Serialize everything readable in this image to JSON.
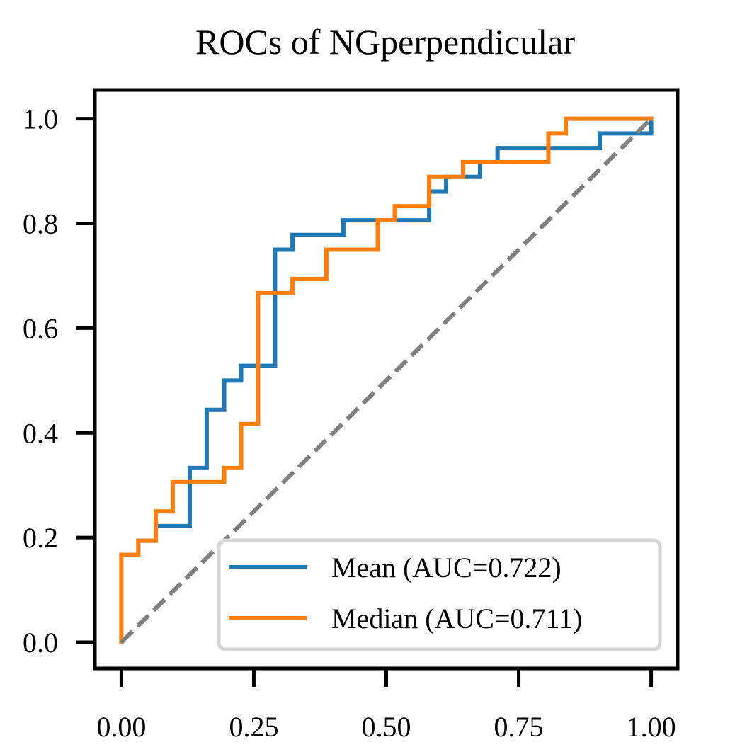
{
  "chart_data": {
    "type": "line",
    "title": "ROCs of NGperpendicular",
    "xlabel": "",
    "ylabel": "",
    "xlim": [
      -0.05,
      1.05
    ],
    "ylim": [
      -0.05,
      1.055
    ],
    "xticks": [
      0.0,
      0.25,
      0.5,
      0.75,
      1.0
    ],
    "xtick_labels": [
      "0.00",
      "0.25",
      "0.50",
      "0.75",
      "1.00"
    ],
    "yticks": [
      0.0,
      0.2,
      0.4,
      0.6,
      0.8,
      1.0
    ],
    "ytick_labels": [
      "0.0",
      "0.2",
      "0.4",
      "0.6",
      "0.8",
      "1.0"
    ],
    "grid": false,
    "legend_position": "lower-right",
    "series": [
      {
        "name": "Mean (AUC=0.722)",
        "color": "#1f77b4",
        "style": "step",
        "x": [
          0.0,
          0.0,
          0.032,
          0.032,
          0.065,
          0.065,
          0.129,
          0.129,
          0.161,
          0.161,
          0.194,
          0.194,
          0.226,
          0.226,
          0.29,
          0.29,
          0.323,
          0.323,
          0.419,
          0.419,
          0.581,
          0.581,
          0.613,
          0.613,
          0.645,
          0.645,
          0.677,
          0.677,
          0.71,
          0.71,
          0.903,
          0.903,
          1.0,
          1.0
        ],
        "y": [
          0.0,
          0.167,
          0.167,
          0.194,
          0.194,
          0.222,
          0.222,
          0.333,
          0.333,
          0.444,
          0.444,
          0.5,
          0.5,
          0.528,
          0.528,
          0.75,
          0.75,
          0.778,
          0.778,
          0.806,
          0.806,
          0.861,
          0.861,
          0.889,
          0.889,
          0.889,
          0.889,
          0.917,
          0.917,
          0.944,
          0.944,
          0.972,
          0.972,
          1.0
        ]
      },
      {
        "name": "Median (AUC=0.711)",
        "color": "#ff7f0e",
        "style": "step",
        "x": [
          0.0,
          0.0,
          0.032,
          0.032,
          0.065,
          0.065,
          0.097,
          0.097,
          0.194,
          0.194,
          0.226,
          0.226,
          0.258,
          0.258,
          0.323,
          0.323,
          0.387,
          0.387,
          0.484,
          0.484,
          0.516,
          0.516,
          0.581,
          0.581,
          0.645,
          0.645,
          0.806,
          0.806,
          0.839,
          0.839,
          1.0
        ],
        "y": [
          0.0,
          0.167,
          0.167,
          0.194,
          0.194,
          0.25,
          0.25,
          0.306,
          0.306,
          0.333,
          0.333,
          0.417,
          0.417,
          0.667,
          0.667,
          0.694,
          0.694,
          0.75,
          0.75,
          0.806,
          0.806,
          0.833,
          0.833,
          0.889,
          0.889,
          0.917,
          0.917,
          0.972,
          0.972,
          1.0,
          1.0
        ]
      }
    ],
    "reference_line": {
      "color": "#808080",
      "style": "dashed",
      "x": [
        0.0,
        1.0
      ],
      "y": [
        0.0,
        1.0
      ]
    }
  }
}
